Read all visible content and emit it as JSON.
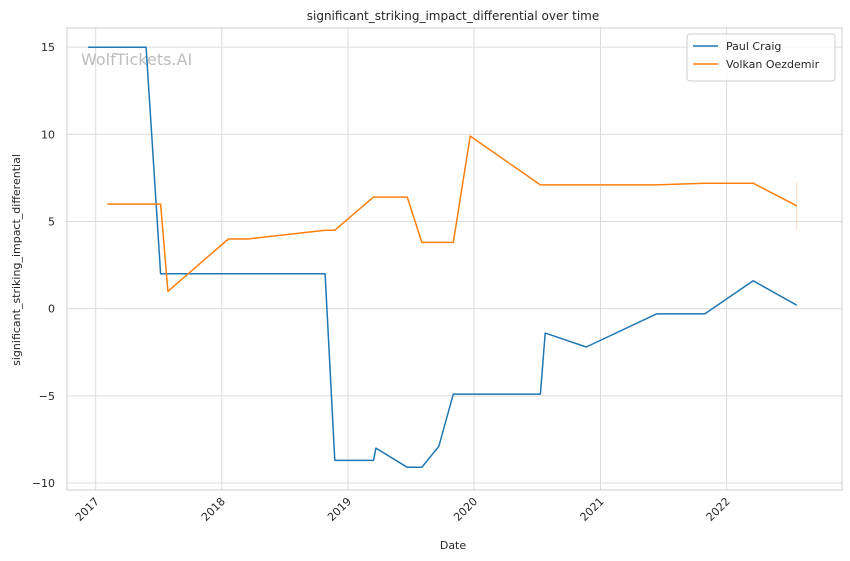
{
  "chart_data": {
    "type": "line",
    "title": "significant_striking_impact_differential over time",
    "xlabel": "Date",
    "ylabel": "significant_striking_impact_differential",
    "xlim": [
      "2016-10-10",
      "2022-12-01"
    ],
    "ylim": [
      -10.4,
      16.1
    ],
    "x_ticks": [
      "2017",
      "2018",
      "2019",
      "2020",
      "2021",
      "2022"
    ],
    "y_ticks": [
      -10,
      -5,
      0,
      5,
      10,
      15
    ],
    "y_tick_labels": [
      "−10",
      "−5",
      "0",
      "5",
      "10",
      "15"
    ],
    "grid": true,
    "legend_position": "top-right",
    "watermark": "WolfTickets.AI",
    "series": [
      {
        "name": "Paul Craig",
        "color": "#1f77b4",
        "points": [
          [
            "2016-12-10",
            15.0
          ],
          [
            "2017-05-27",
            15.0
          ],
          [
            "2017-07-08",
            2.0
          ],
          [
            "2017-07-22",
            2.0
          ],
          [
            "2018-10-27",
            2.0
          ],
          [
            "2018-11-24",
            -8.7
          ],
          [
            "2019-03-16",
            -8.7
          ],
          [
            "2019-03-23",
            -8.0
          ],
          [
            "2019-06-22",
            -9.1
          ],
          [
            "2019-08-03",
            -9.1
          ],
          [
            "2019-09-21",
            -7.9
          ],
          [
            "2019-11-02",
            -4.9
          ],
          [
            "2020-07-11",
            -4.9
          ],
          [
            "2020-07-25",
            -1.4
          ],
          [
            "2020-11-21",
            -2.2
          ],
          [
            "2021-06-12",
            -0.3
          ],
          [
            "2021-10-30",
            -0.3
          ],
          [
            "2022-03-19",
            1.6
          ],
          [
            "2022-07-23",
            0.2
          ]
        ]
      },
      {
        "name": "Volkan Oezdemir",
        "color": "#ff7f0e",
        "points": [
          [
            "2017-02-04",
            6.0
          ],
          [
            "2017-07-08",
            6.0
          ],
          [
            "2017-07-29",
            1.0
          ],
          [
            "2018-01-20",
            4.0
          ],
          [
            "2018-03-17",
            4.0
          ],
          [
            "2018-10-27",
            4.5
          ],
          [
            "2018-11-24",
            4.5
          ],
          [
            "2019-03-16",
            6.4
          ],
          [
            "2019-06-22",
            6.4
          ],
          [
            "2019-08-03",
            3.8
          ],
          [
            "2019-11-02",
            3.8
          ],
          [
            "2019-12-21",
            9.9
          ],
          [
            "2020-07-11",
            7.1
          ],
          [
            "2021-06-12",
            7.1
          ],
          [
            "2021-10-30",
            7.2
          ],
          [
            "2022-03-19",
            7.2
          ],
          [
            "2022-07-23",
            5.9
          ]
        ]
      }
    ]
  }
}
